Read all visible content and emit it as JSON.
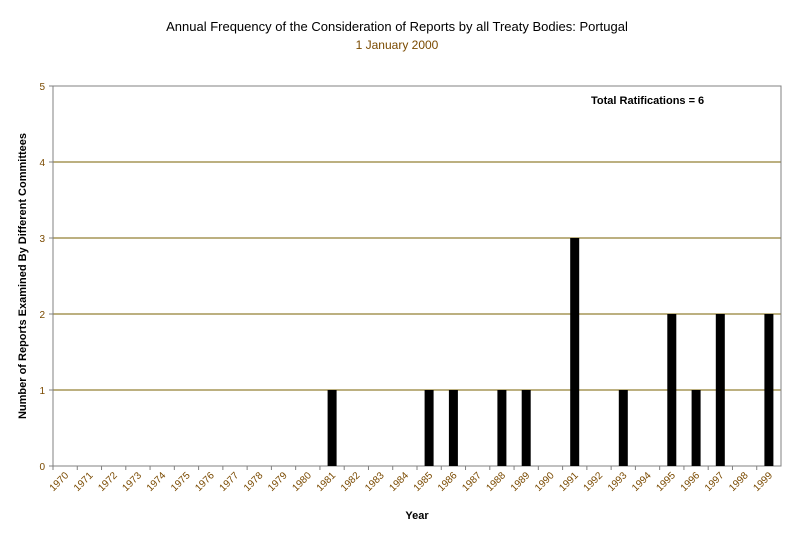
{
  "chart_data": {
    "type": "bar",
    "title": "Annual Frequency of the Consideration of Reports by all Treaty Bodies: Portugal",
    "subtitle": "1 January 2000",
    "xlabel": "Year",
    "ylabel": "Number of Reports Examined By Different Committees",
    "annotation": "Total Ratifications = 6",
    "ylim": [
      0,
      5
    ],
    "yticks": [
      0,
      1,
      2,
      3,
      4,
      5
    ],
    "grid": true,
    "bar_color": "#000000",
    "gridline_color": "#7a6000",
    "categories": [
      "1970",
      "1971",
      "1972",
      "1973",
      "1974",
      "1975",
      "1976",
      "1977",
      "1978",
      "1979",
      "1980",
      "1981",
      "1982",
      "1983",
      "1984",
      "1985",
      "1986",
      "1987",
      "1988",
      "1989",
      "1990",
      "1991",
      "1992",
      "1993",
      "1994",
      "1995",
      "1996",
      "1997",
      "1998",
      "1999"
    ],
    "values": [
      0,
      0,
      0,
      0,
      0,
      0,
      0,
      0,
      0,
      0,
      0,
      1,
      0,
      0,
      0,
      1,
      1,
      0,
      1,
      1,
      0,
      3,
      0,
      1,
      0,
      2,
      1,
      2,
      0,
      2
    ]
  }
}
